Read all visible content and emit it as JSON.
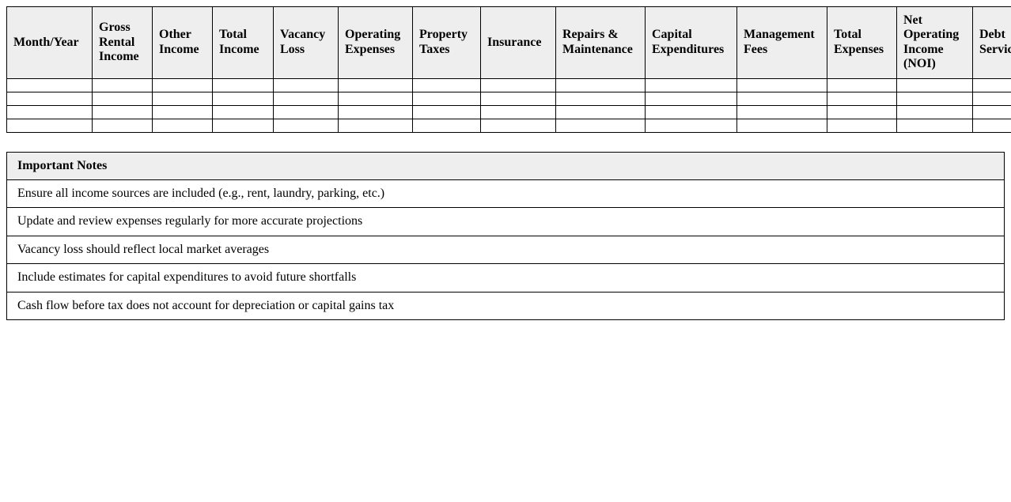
{
  "cashflow_table": {
    "columns": [
      "Month/Year",
      "Gross Rental Income",
      "Other Income",
      "Total Income",
      "Vacancy Loss",
      "Operating Expenses",
      "Property Taxes",
      "Insurance",
      "Repairs & Maintenance",
      "Capital Expenditures",
      "Management Fees",
      "Total Expenses",
      "Net Operating Income (NOI)",
      "Debt Service"
    ],
    "empty_row_count": 4
  },
  "notes_table": {
    "header": "Important Notes",
    "notes": [
      "Ensure all income sources are included (e.g., rent, laundry, parking, etc.)",
      "Update and review expenses regularly for more accurate projections",
      "Vacancy loss should reflect local market averages",
      "Include estimates for capital expenditures to avoid future shortfalls",
      "Cash flow before tax does not account for depreciation or capital gains tax"
    ]
  },
  "colors": {
    "header_bg": "#eeeeee",
    "border": "#000000",
    "text": "#000000",
    "page_bg": "#ffffff"
  }
}
